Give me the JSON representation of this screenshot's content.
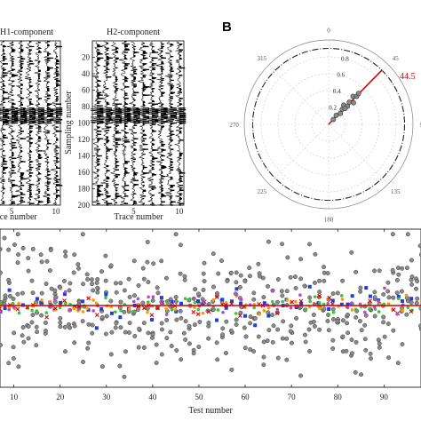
{
  "figure": {
    "panel_b_letter": "B",
    "h1_title": "H1-component",
    "h2_title": "H2-component",
    "trace_axis_label": "Trace number",
    "sampling_axis_label": "Sampling number",
    "test_axis_label": "Test number"
  },
  "chart_data": [
    {
      "type": "heatmap",
      "subtype": "seismic-wiggle",
      "title": "H1-component",
      "xlabel": "Trace number",
      "x_ticks": [
        "5",
        "10"
      ],
      "xlim": [
        0.5,
        10.5
      ],
      "ylim": [
        0,
        200
      ],
      "traces": 10,
      "strong_event_samples": [
        86,
        96
      ],
      "colors": {
        "trace": "#000000"
      }
    },
    {
      "type": "heatmap",
      "subtype": "seismic-wiggle",
      "title": "H2-component",
      "xlabel": "Trace number",
      "ylabel": "Sampling number",
      "x_ticks": [
        "5",
        "10"
      ],
      "y_ticks": [
        "20",
        "40",
        "60",
        "80",
        "100",
        "120",
        "140",
        "160",
        "180",
        "200"
      ],
      "xlim": [
        0.5,
        10.5
      ],
      "ylim": [
        0,
        200
      ],
      "traces": 10,
      "strong_event_samples": [
        86,
        96
      ],
      "colors": {
        "trace": "#000000"
      }
    },
    {
      "type": "scatter",
      "subtype": "polar",
      "angle_ticks": [
        "0",
        "45",
        "90",
        "135",
        "180",
        "225",
        "270",
        "315"
      ],
      "radial_ticks": [
        "0.2",
        "0.4",
        "0.6",
        "0.8"
      ],
      "rlim": [
        0,
        1
      ],
      "points": [
        {
          "theta": 44,
          "r": 0.08
        },
        {
          "theta": 40,
          "r": 0.14
        },
        {
          "theta": 47,
          "r": 0.19
        },
        {
          "theta": 42,
          "r": 0.24
        },
        {
          "theta": 38,
          "r": 0.29
        },
        {
          "theta": 46,
          "r": 0.31
        },
        {
          "theta": 43,
          "r": 0.36
        },
        {
          "theta": 49,
          "r": 0.39
        },
        {
          "theta": 41,
          "r": 0.44
        },
        {
          "theta": 45,
          "r": 0.47
        },
        {
          "theta": 44,
          "r": 0.51
        },
        {
          "theta": 46,
          "r": 0.27
        }
      ],
      "result_line": {
        "theta": 44.5,
        "r": 1.0,
        "label": "44.5"
      },
      "colors": {
        "points": "#8a8a8a",
        "result": "#e00000"
      }
    },
    {
      "type": "scatter",
      "xlabel": "Test number",
      "x_ticks": [
        "10",
        "20",
        "30",
        "40",
        "50",
        "60",
        "70",
        "80",
        "90"
      ],
      "xlim": [
        7,
        98
      ],
      "ylim": [
        -1,
        1
      ],
      "reference_line": 0,
      "series": [
        {
          "marker": "gray-circle",
          "spread": 0.42
        },
        {
          "marker": "blue-square",
          "spread": 0.1
        },
        {
          "marker": "green-dot",
          "spread": 0.06
        },
        {
          "marker": "orange-dot",
          "spread": 0.06
        },
        {
          "marker": "red-x",
          "spread": 0.08
        },
        {
          "marker": "purple-dot",
          "spread": 0.08
        }
      ],
      "colors": {
        "reference": "#d40000",
        "gray": "#8c8c8c",
        "blue": "#1f3fd6",
        "green": "#34c634",
        "orange": "#ff9a00",
        "red": "#e00000",
        "purple": "#b04ad0"
      }
    }
  ]
}
